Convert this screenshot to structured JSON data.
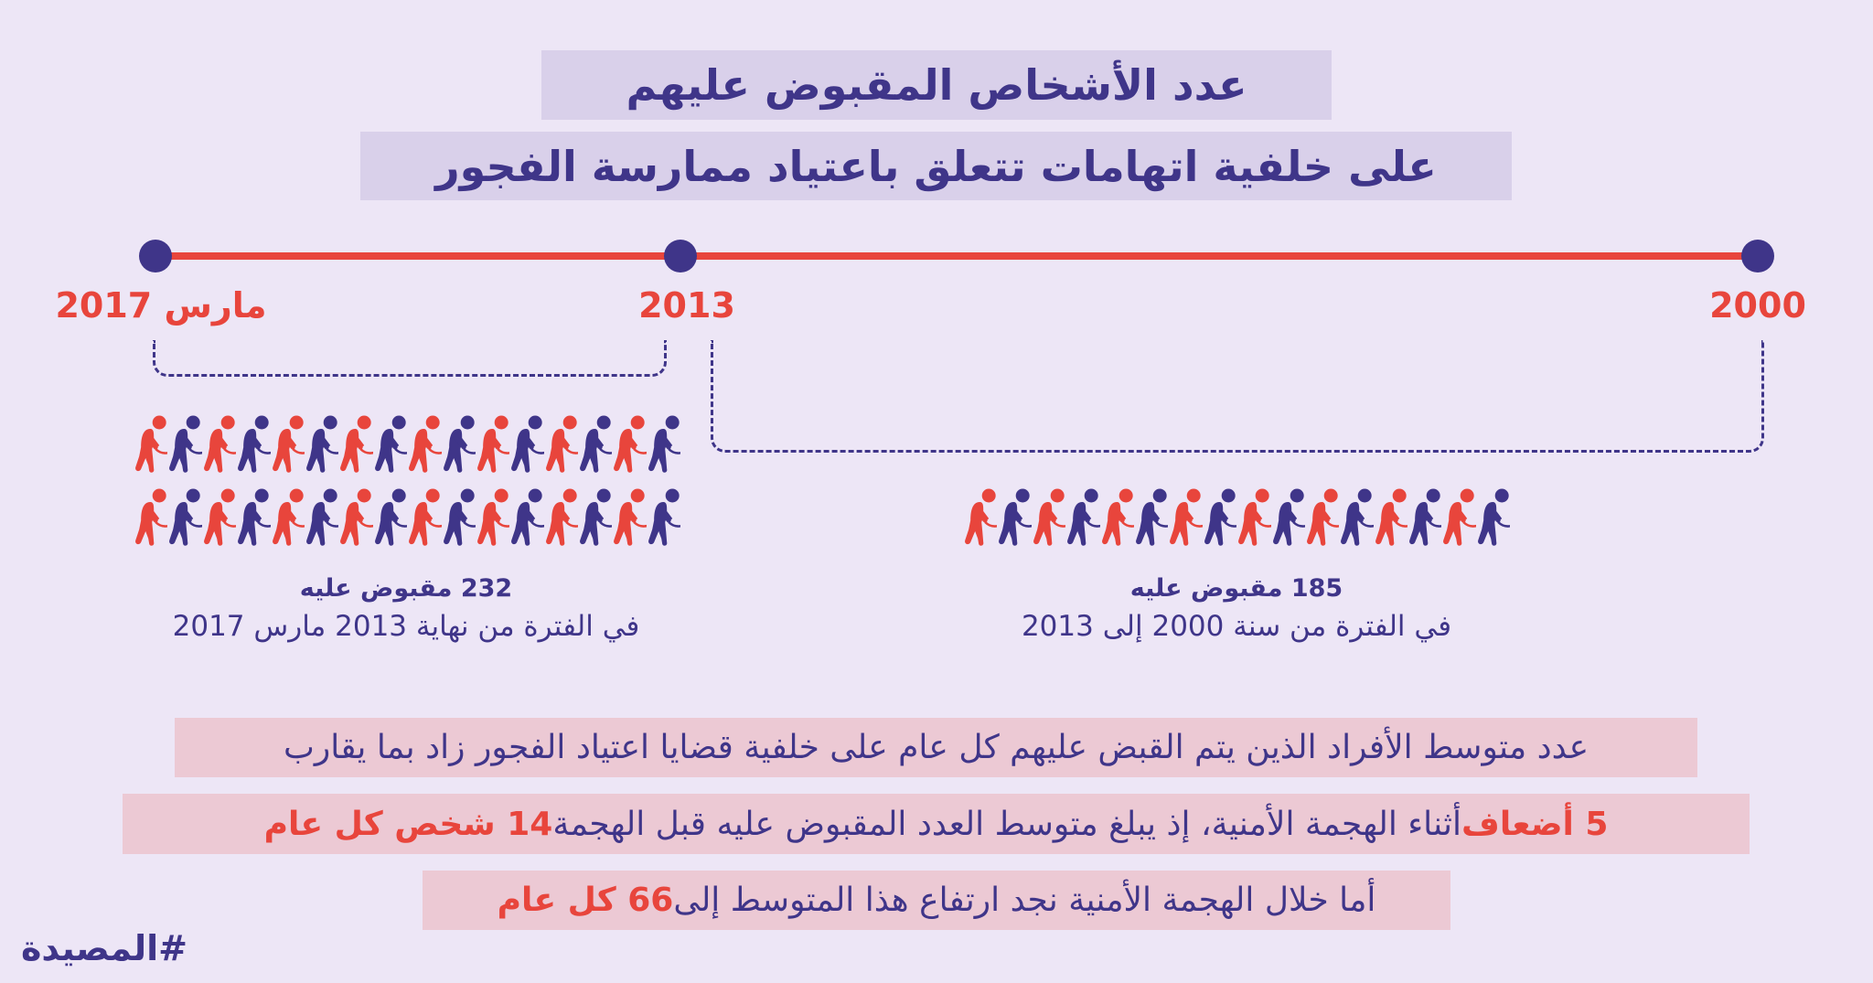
{
  "title": {
    "line1": "عدد الأشخاص المقبوض عليهم",
    "line2": "على خلفية اتهامات تتعلق باعتياد ممارسة الفجور"
  },
  "timeline": {
    "labels": [
      "مارس 2017",
      "2013",
      "2000"
    ]
  },
  "periods": [
    {
      "count_label": "232 مقبوض عليه",
      "description": "في الفترة من نهاية 2013 مارس 2017",
      "icon_rows": 2,
      "icons_per_row": 16
    },
    {
      "count_label": "185 مقبوض عليه",
      "description": "في الفترة من سنة 2000 إلى 2013",
      "icon_rows": 1,
      "icons_per_row": 16
    }
  ],
  "summary": {
    "line1": "عدد متوسط الأفراد الذين يتم القبض عليهم كل عام على خلفية قضايا اعتياد الفجور زاد بما يقارب",
    "line2_a": "5 أضعاف",
    "line2_b": " أثناء الهجمة الأمنية، إذ يبلغ متوسط العدد المقبوض عليه قبل الهجمة ",
    "line2_c": "14 شخص كل عام",
    "line3_a": "أما خلال الهجمة الأمنية نجد ارتفاع هذا المتوسط إلى ",
    "line3_b": "66 كل عام"
  },
  "hashtag": "#المصيدة",
  "colors": {
    "background": "#ede6f6",
    "purple": "#3f3589",
    "red": "#e8453c"
  },
  "icons": {
    "person": "handcuffed-person-icon"
  }
}
